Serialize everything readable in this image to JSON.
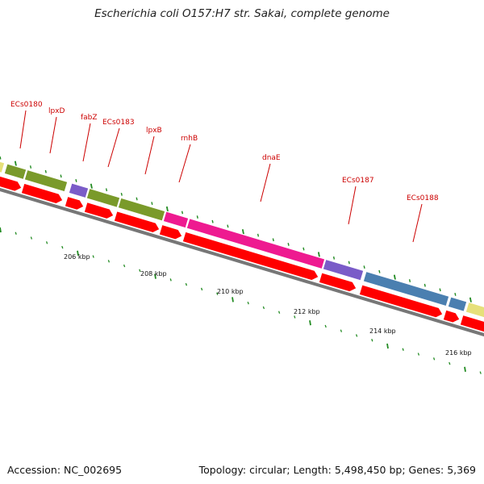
{
  "title": "Escherichia coli O157:H7 str. Sakai, complete genome",
  "footer": {
    "accession": "Accession: NC_002695",
    "stats": "Topology: circular; Length: 5,498,450 bp; Genes: 5,369"
  },
  "colors": {
    "cds_red": "#ff0000",
    "olive": "#7a9a2a",
    "purple": "#7a5cc8",
    "magenta": "#ee1a90",
    "steel_blue": "#4a7fb0",
    "pale_yellow": "#e6e07a",
    "tick_green": "#228b22",
    "label_red": "#cc0000",
    "backbone_gray": "#777777"
  },
  "gene_labels": [
    "ECs0180",
    "lpxD",
    "fabZ",
    "ECs0183",
    "lpxB",
    "rnhB",
    "dnaE",
    "ECs0187",
    "ECs0188"
  ],
  "kbp_labels": [
    "206 kbp",
    "208 kbp",
    "210 kbp",
    "212 kbp",
    "214 kbp",
    "216 kbp"
  ]
}
